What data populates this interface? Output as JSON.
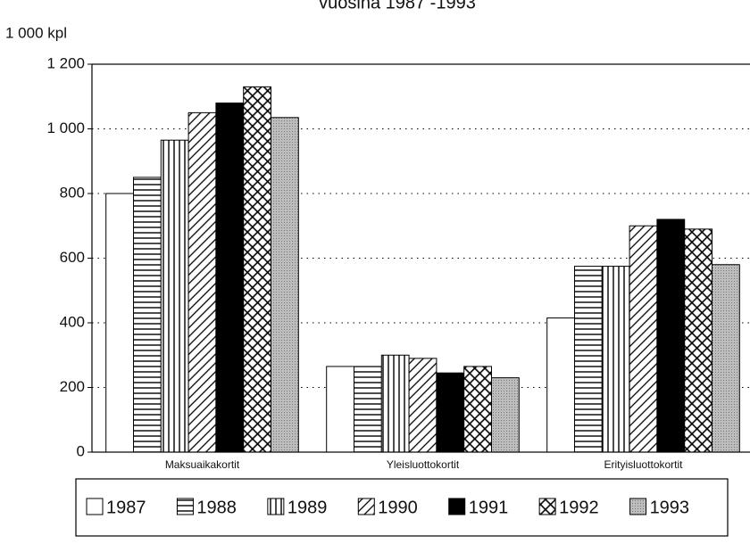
{
  "chart_data": {
    "type": "bar",
    "title": "vuosina 1987 -1993",
    "y_label": "1 000 kpl",
    "categories": [
      "Maksuaikakortit",
      "Yleisluottokortit",
      "Erityisluottokortit"
    ],
    "series": [
      {
        "name": "1987",
        "pattern": "white",
        "values": [
          800,
          265,
          415
        ]
      },
      {
        "name": "1988",
        "pattern": "horizontal",
        "values": [
          850,
          265,
          575
        ]
      },
      {
        "name": "1989",
        "pattern": "vertical",
        "values": [
          965,
          300,
          575
        ]
      },
      {
        "name": "1990",
        "pattern": "diagonal",
        "values": [
          1050,
          290,
          700
        ]
      },
      {
        "name": "1991",
        "pattern": "black",
        "values": [
          1080,
          245,
          720
        ]
      },
      {
        "name": "1992",
        "pattern": "crosshatch",
        "values": [
          1130,
          265,
          690
        ]
      },
      {
        "name": "1993",
        "pattern": "gray",
        "values": [
          1035,
          230,
          580
        ]
      }
    ],
    "ylim": [
      0,
      1200
    ],
    "yticks": [
      0,
      200,
      400,
      600,
      800,
      {
        "value": 1000,
        "label": "1 000"
      },
      {
        "value": 1200,
        "label": "1 200"
      }
    ],
    "grid": true,
    "legend": "bottom"
  }
}
